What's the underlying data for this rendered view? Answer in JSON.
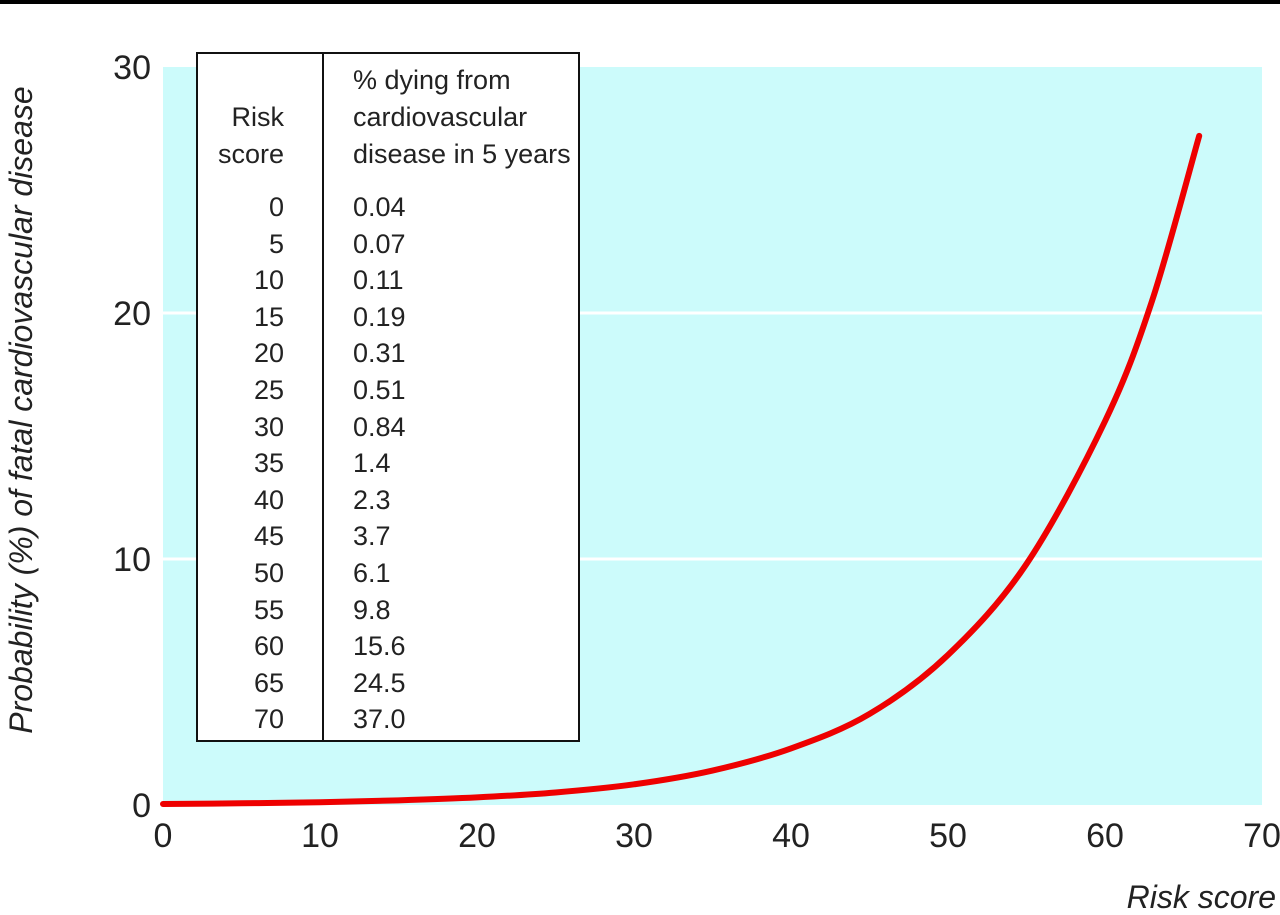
{
  "chart_data": {
    "type": "line",
    "xlabel": "Risk score",
    "ylabel": "Probability (%) of fatal cardiovascular disease",
    "xlim": [
      0,
      70
    ],
    "ylim": [
      0,
      30
    ],
    "xticks": [
      "0",
      "10",
      "20",
      "30",
      "40",
      "50",
      "60",
      "70"
    ],
    "yticks": [
      "0",
      "10",
      "20",
      "30"
    ],
    "grid": "horizontal",
    "colors": {
      "plot_background": "#ccfbfb",
      "line": "#ee0000",
      "gridline": "#ffffff"
    },
    "series": [
      {
        "x": [
          0,
          5,
          10,
          15,
          20,
          25,
          30,
          35,
          40,
          45,
          50,
          55,
          60,
          63,
          66
        ],
        "y": [
          0.04,
          0.07,
          0.11,
          0.19,
          0.31,
          0.51,
          0.84,
          1.4,
          2.3,
          3.7,
          6.1,
          9.8,
          15.6,
          20.5,
          27.2
        ]
      }
    ],
    "inset_table": {
      "header_score": "Risk\nscore",
      "header_percent": "% dying from\ncardiovascular\ndisease in 5 years",
      "rows": [
        {
          "score": "0",
          "percent": "0.04"
        },
        {
          "score": "5",
          "percent": "0.07"
        },
        {
          "score": "10",
          "percent": "0.11"
        },
        {
          "score": "15",
          "percent": "0.19"
        },
        {
          "score": "20",
          "percent": "0.31"
        },
        {
          "score": "25",
          "percent": "0.51"
        },
        {
          "score": "30",
          "percent": "0.84"
        },
        {
          "score": "35",
          "percent": "1.4"
        },
        {
          "score": "40",
          "percent": "2.3"
        },
        {
          "score": "45",
          "percent": "3.7"
        },
        {
          "score": "50",
          "percent": "6.1"
        },
        {
          "score": "55",
          "percent": "9.8"
        },
        {
          "score": "60",
          "percent": "15.6"
        },
        {
          "score": "65",
          "percent": "24.5"
        },
        {
          "score": "70",
          "percent": "37.0"
        }
      ]
    }
  }
}
